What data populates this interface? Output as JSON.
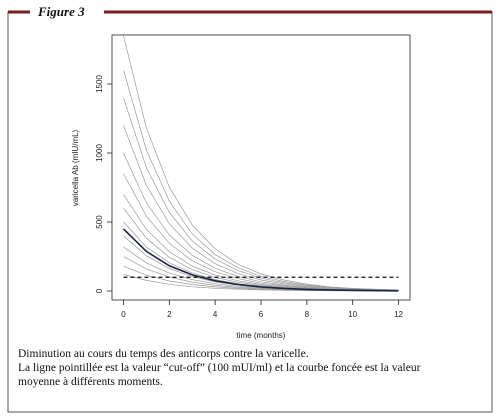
{
  "figure_label": "Figure 3",
  "caption": [
    "Diminution au cours du temps des anticorps contre la varicelle.",
    "La ligne pointillée est la valeur “cut-off” (100 mUI/ml) et la courbe foncée est la valeur",
    "moyenne à différents moments."
  ],
  "chart_data": {
    "type": "line",
    "x_label": "time (months)",
    "y_label": "varicella Ab (mIU/mL)",
    "x": [
      0,
      1,
      2,
      3,
      4,
      5,
      6,
      7,
      8,
      9,
      10,
      11,
      12
    ],
    "xlim": [
      -0.5,
      12.5
    ],
    "xticks": [
      0,
      2,
      4,
      6,
      8,
      10,
      12
    ],
    "ylim": [
      -65,
      1855
    ],
    "yticks": [
      0,
      500,
      1000,
      1500
    ],
    "series": [
      {
        "color": "#9a9a9a",
        "values": [
          1850,
          1180,
          753,
          479,
          305,
          194,
          124,
          80,
          50,
          31,
          20,
          13,
          8
        ]
      },
      {
        "color": "#9a9a9a",
        "values": [
          1600,
          1021,
          651,
          414,
          264,
          168,
          107,
          69,
          43,
          27,
          18,
          11,
          7
        ]
      },
      {
        "color": "#9a9a9a",
        "values": [
          1400,
          893,
          570,
          363,
          231,
          147,
          94,
          60,
          38,
          24,
          15,
          10,
          6
        ]
      },
      {
        "color": "#9a9a9a",
        "values": [
          1200,
          766,
          488,
          311,
          198,
          126,
          80,
          52,
          32,
          20,
          13,
          8,
          5
        ]
      },
      {
        "color": "#9a9a9a",
        "values": [
          1000,
          638,
          407,
          259,
          165,
          105,
          67,
          43,
          27,
          17,
          11,
          7,
          5
        ]
      },
      {
        "color": "#9a9a9a",
        "values": [
          850,
          542,
          346,
          220,
          140,
          89,
          57,
          37,
          23,
          14,
          9,
          6,
          4
        ]
      },
      {
        "color": "#9a9a9a",
        "values": [
          700,
          447,
          285,
          181,
          116,
          74,
          47,
          30,
          19,
          12,
          8,
          5,
          3
        ]
      },
      {
        "color": "#9a9a9a",
        "values": [
          600,
          383,
          244,
          155,
          99,
          63,
          40,
          26,
          16,
          10,
          7,
          4,
          3
        ]
      },
      {
        "color": "#9a9a9a",
        "values": [
          500,
          319,
          204,
          130,
          83,
          53,
          34,
          22,
          14,
          9,
          6,
          4,
          2
        ]
      },
      {
        "color": "#9a9a9a",
        "values": [
          400,
          255,
          163,
          104,
          66,
          42,
          27,
          17,
          11,
          7,
          4,
          3,
          2
        ]
      },
      {
        "color": "#9a9a9a",
        "values": [
          320,
          204,
          130,
          83,
          53,
          34,
          21,
          14,
          9,
          5,
          4,
          2,
          1
        ]
      },
      {
        "color": "#9a9a9a",
        "values": [
          250,
          160,
          102,
          65,
          41,
          26,
          17,
          11,
          7,
          4,
          3,
          2,
          1
        ]
      },
      {
        "color": "#9a9a9a",
        "values": [
          180,
          115,
          73,
          47,
          30,
          19,
          12,
          8,
          5,
          3,
          2,
          1,
          1
        ]
      },
      {
        "color": "#9a9a9a",
        "values": [
          120,
          77,
          49,
          31,
          20,
          13,
          8,
          5,
          3,
          2,
          1,
          1,
          1
        ]
      },
      {
        "color": "#1a2340",
        "values": [
          450,
          287,
          183,
          117,
          74,
          47,
          30,
          19,
          12,
          8,
          5,
          3,
          2
        ]
      }
    ],
    "reference_line": {
      "value": 100,
      "style": "dashed",
      "color": "#111"
    }
  }
}
